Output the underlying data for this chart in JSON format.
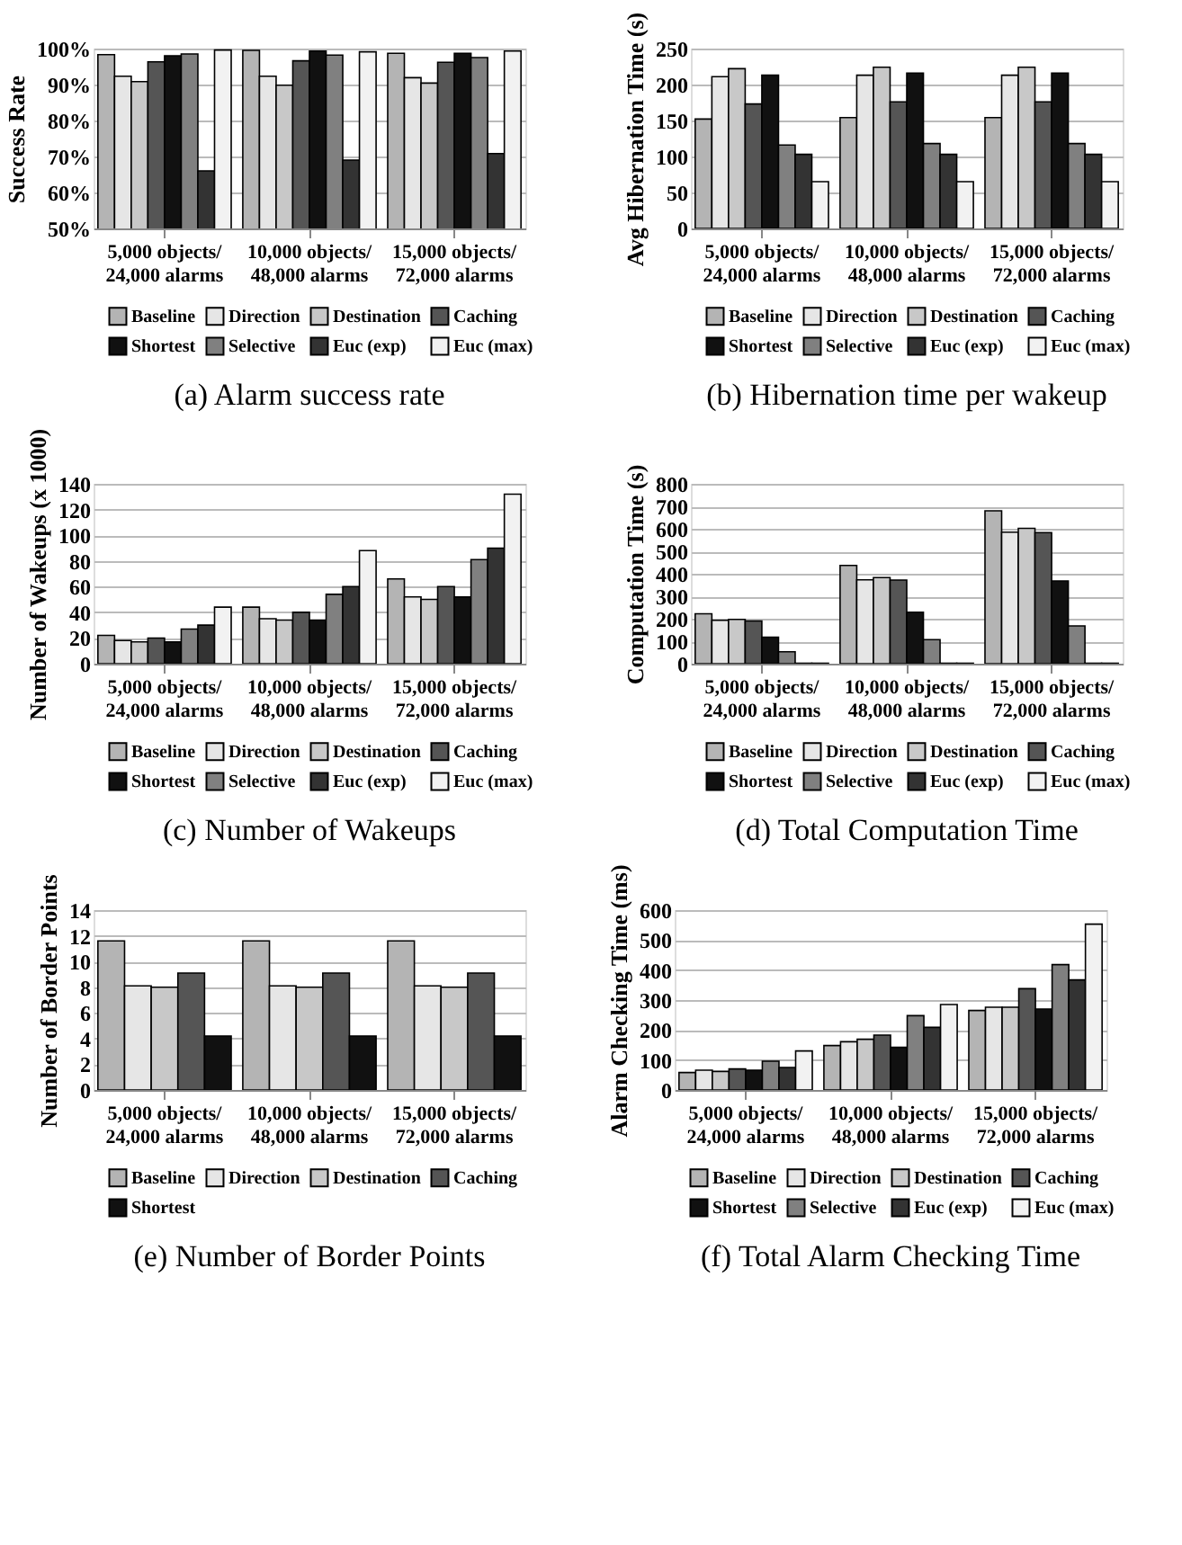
{
  "chart_data": [
    {
      "type": "bar",
      "title": "(a) Alarm success rate",
      "ylabel": "Success Rate",
      "categories": [
        "5,000 objects/\n24,000 alarms",
        "10,000 objects/\n48,000 alarms",
        "15,000 objects/\n72,000 alarms"
      ],
      "ylim": [
        50,
        100
      ],
      "yticks": [
        {
          "value": 50,
          "label": "50%"
        },
        {
          "value": 60,
          "label": "60%"
        },
        {
          "value": 70,
          "label": "70%"
        },
        {
          "value": 80,
          "label": "80%"
        },
        {
          "value": 90,
          "label": "90%"
        },
        {
          "value": 100,
          "label": "100%"
        }
      ],
      "grid": "y",
      "legend": "bottom",
      "series": [
        {
          "name": "Baseline",
          "color": "#b4b4b4",
          "values": [
            98.3,
            99.5,
            98.7
          ]
        },
        {
          "name": "Direction",
          "color": "#e6e6e6",
          "values": [
            92.3,
            92.3,
            91.9
          ]
        },
        {
          "name": "Destination",
          "color": "#c8c8c8",
          "values": [
            90.8,
            89.8,
            90.4
          ]
        },
        {
          "name": "Caching",
          "color": "#555555",
          "values": [
            96.3,
            96.6,
            96.2
          ]
        },
        {
          "name": "Shortest",
          "color": "#111111",
          "values": [
            98.0,
            99.3,
            98.7
          ]
        },
        {
          "name": "Selective",
          "color": "#808080",
          "values": [
            98.5,
            98.2,
            97.5
          ]
        },
        {
          "name": "Euc (exp)",
          "color": "#333333",
          "values": [
            66.0,
            69.0,
            70.8
          ]
        },
        {
          "name": "Euc (max)",
          "color": "#f2f2f2",
          "values": [
            99.6,
            99.1,
            99.3
          ]
        }
      ]
    },
    {
      "type": "bar",
      "title": "(b) Hibernation time per wakeup",
      "ylabel": "Avg Hibernation Time (s)",
      "categories": [
        "5,000 objects/\n24,000 alarms",
        "10,000 objects/\n48,000 alarms",
        "15,000 objects/\n72,000 alarms"
      ],
      "ylim": [
        0,
        250
      ],
      "yticks": [
        0,
        50,
        100,
        150,
        200,
        250
      ],
      "grid": "y",
      "legend": "bottom",
      "series": [
        {
          "name": "Baseline",
          "color": "#b4b4b4",
          "values": [
            152,
            154,
            154
          ]
        },
        {
          "name": "Direction",
          "color": "#e6e6e6",
          "values": [
            211,
            213,
            213
          ]
        },
        {
          "name": "Destination",
          "color": "#c8c8c8",
          "values": [
            222,
            224,
            224
          ]
        },
        {
          "name": "Caching",
          "color": "#555555",
          "values": [
            173,
            176,
            176
          ]
        },
        {
          "name": "Shortest",
          "color": "#111111",
          "values": [
            213,
            216,
            216
          ]
        },
        {
          "name": "Selective",
          "color": "#808080",
          "values": [
            116,
            118,
            118
          ]
        },
        {
          "name": "Euc (exp)",
          "color": "#333333",
          "values": [
            103,
            103,
            103
          ]
        },
        {
          "name": "Euc (max)",
          "color": "#f2f2f2",
          "values": [
            65,
            65,
            65
          ]
        }
      ]
    },
    {
      "type": "bar",
      "title": "(c) Number of Wakeups",
      "ylabel": "Number of Wakeups (x 1000)",
      "categories": [
        "5,000 objects/\n24,000 alarms",
        "10,000 objects/\n48,000 alarms",
        "15,000 objects/\n72,000 alarms"
      ],
      "ylim": [
        0,
        140
      ],
      "yticks": [
        0,
        20,
        40,
        60,
        80,
        100,
        120,
        140
      ],
      "grid": "y",
      "legend": "bottom",
      "series": [
        {
          "name": "Baseline",
          "color": "#b4b4b4",
          "values": [
            22,
            44,
            66
          ]
        },
        {
          "name": "Direction",
          "color": "#e6e6e6",
          "values": [
            18,
            35,
            52
          ]
        },
        {
          "name": "Destination",
          "color": "#c8c8c8",
          "values": [
            17,
            34,
            50
          ]
        },
        {
          "name": "Caching",
          "color": "#555555",
          "values": [
            20,
            40,
            60
          ]
        },
        {
          "name": "Shortest",
          "color": "#111111",
          "values": [
            17,
            34,
            52
          ]
        },
        {
          "name": "Selective",
          "color": "#808080",
          "values": [
            27,
            54,
            81
          ]
        },
        {
          "name": "Euc (exp)",
          "color": "#333333",
          "values": [
            30,
            60,
            90
          ]
        },
        {
          "name": "Euc (max)",
          "color": "#f2f2f2",
          "values": [
            44,
            88,
            132
          ]
        }
      ]
    },
    {
      "type": "bar",
      "title": "(d) Total Computation Time",
      "ylabel": "Computation Time (s)",
      "categories": [
        "5,000 objects/\n24,000 alarms",
        "10,000 objects/\n48,000 alarms",
        "15,000 objects/\n72,000 alarms"
      ],
      "ylim": [
        0,
        800
      ],
      "yticks": [
        0,
        100,
        200,
        300,
        400,
        500,
        600,
        700,
        800
      ],
      "grid": "y",
      "legend": "bottom",
      "series": [
        {
          "name": "Baseline",
          "color": "#b4b4b4",
          "values": [
            222,
            437,
            680
          ]
        },
        {
          "name": "Direction",
          "color": "#e6e6e6",
          "values": [
            193,
            373,
            585
          ]
        },
        {
          "name": "Destination",
          "color": "#c8c8c8",
          "values": [
            197,
            383,
            602
          ]
        },
        {
          "name": "Caching",
          "color": "#555555",
          "values": [
            190,
            372,
            583
          ]
        },
        {
          "name": "Shortest",
          "color": "#111111",
          "values": [
            118,
            229,
            368
          ]
        },
        {
          "name": "Selective",
          "color": "#808080",
          "values": [
            53,
            107,
            168
          ]
        },
        {
          "name": "Euc (exp)",
          "color": "#333333",
          "values": [
            2,
            2,
            2
          ]
        },
        {
          "name": "Euc (max)",
          "color": "#f2f2f2",
          "values": [
            2,
            2,
            2
          ]
        }
      ]
    },
    {
      "type": "bar",
      "title": "(e) Number of Border Points",
      "ylabel": "Number of Border Points",
      "categories": [
        "5,000 objects/\n24,000 alarms",
        "10,000 objects/\n48,000 alarms",
        "15,000 objects/\n72,000 alarms"
      ],
      "ylim": [
        0,
        14
      ],
      "yticks": [
        0,
        2,
        4,
        6,
        8,
        10,
        12,
        14
      ],
      "grid": "y",
      "legend": "bottom",
      "series": [
        {
          "name": "Baseline",
          "color": "#b4b4b4",
          "values": [
            11.6,
            11.6,
            11.6
          ]
        },
        {
          "name": "Direction",
          "color": "#e6e6e6",
          "values": [
            8.1,
            8.1,
            8.1
          ]
        },
        {
          "name": "Destination",
          "color": "#c8c8c8",
          "values": [
            8.0,
            8.0,
            8.0
          ]
        },
        {
          "name": "Caching",
          "color": "#555555",
          "values": [
            9.1,
            9.1,
            9.1
          ]
        },
        {
          "name": "Shortest",
          "color": "#111111",
          "values": [
            4.2,
            4.2,
            4.2
          ]
        }
      ]
    },
    {
      "type": "bar",
      "title": "(f) Total Alarm Checking Time",
      "ylabel": "Alarm Checking Time (ms)",
      "categories": [
        "5,000 objects/\n24,000 alarms",
        "10,000 objects/\n48,000 alarms",
        "15,000 objects/\n72,000 alarms"
      ],
      "ylim": [
        0,
        600
      ],
      "yticks": [
        0,
        100,
        200,
        300,
        400,
        500,
        600
      ],
      "grid": "y",
      "legend": "bottom",
      "series": [
        {
          "name": "Baseline",
          "color": "#b4b4b4",
          "values": [
            58,
            148,
            265
          ]
        },
        {
          "name": "Direction",
          "color": "#e6e6e6",
          "values": [
            66,
            161,
            276
          ]
        },
        {
          "name": "Destination",
          "color": "#c8c8c8",
          "values": [
            62,
            169,
            276
          ]
        },
        {
          "name": "Caching",
          "color": "#555555",
          "values": [
            70,
            183,
            338
          ]
        },
        {
          "name": "Shortest",
          "color": "#111111",
          "values": [
            66,
            142,
            270
          ]
        },
        {
          "name": "Selective",
          "color": "#808080",
          "values": [
            96,
            248,
            418
          ]
        },
        {
          "name": "Euc (exp)",
          "color": "#333333",
          "values": [
            75,
            209,
            367
          ]
        },
        {
          "name": "Euc (max)",
          "color": "#f2f2f2",
          "values": [
            130,
            285,
            553
          ]
        }
      ]
    }
  ]
}
